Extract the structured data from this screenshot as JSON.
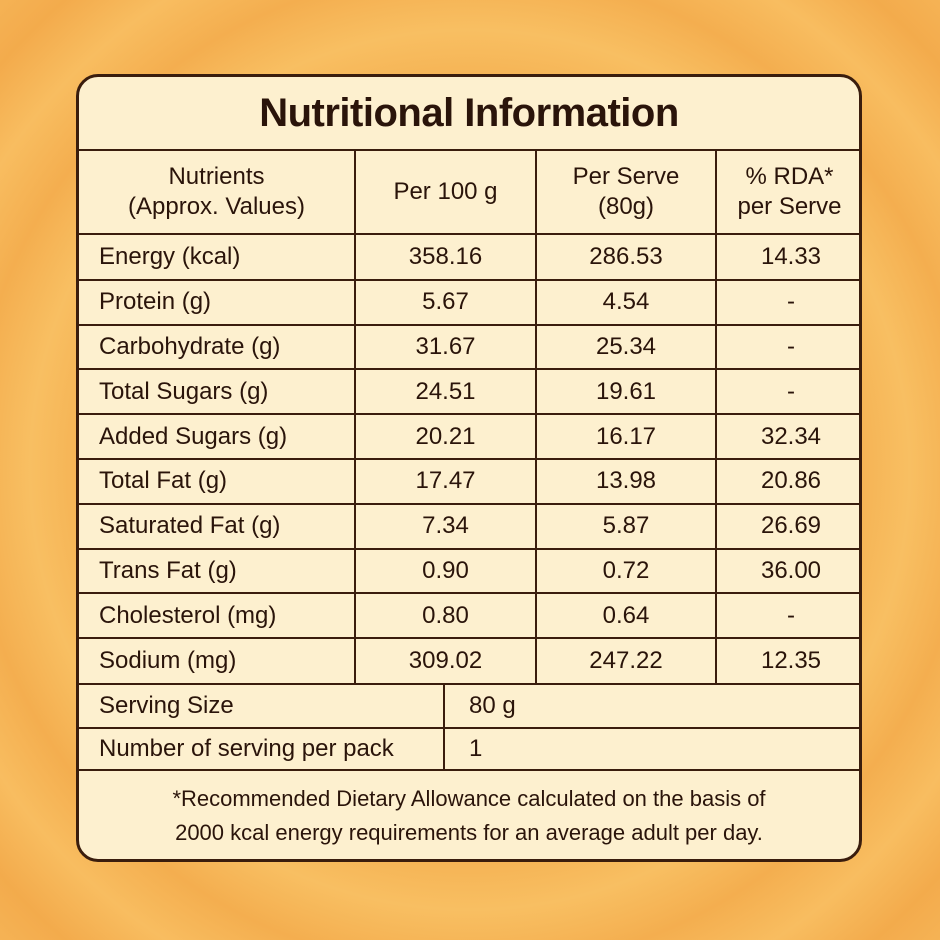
{
  "title": "Nutritional Information",
  "columns": {
    "nutrients": [
      "Nutrients",
      "(Approx. Values)"
    ],
    "per100": "Per 100 g",
    "perServe": [
      "Per Serve",
      "(80g)"
    ],
    "rda": [
      "% RDA*",
      "per Serve"
    ]
  },
  "rows": [
    {
      "name": "Energy (kcal)",
      "per100": "358.16",
      "perServe": "286.53",
      "rda": "14.33"
    },
    {
      "name": "Protein (g)",
      "per100": "5.67",
      "perServe": "4.54",
      "rda": "-"
    },
    {
      "name": "Carbohydrate (g)",
      "per100": "31.67",
      "perServe": "25.34",
      "rda": "-"
    },
    {
      "name": "Total Sugars (g)",
      "per100": "24.51",
      "perServe": "19.61",
      "rda": "-"
    },
    {
      "name": "Added Sugars (g)",
      "per100": "20.21",
      "perServe": "16.17",
      "rda": "32.34"
    },
    {
      "name": "Total Fat (g)",
      "per100": "17.47",
      "perServe": "13.98",
      "rda": "20.86"
    },
    {
      "name": "Saturated Fat (g)",
      "per100": "7.34",
      "perServe": "5.87",
      "rda": "26.69"
    },
    {
      "name": "Trans Fat (g)",
      "per100": "0.90",
      "perServe": "0.72",
      "rda": "36.00"
    },
    {
      "name": "Cholesterol (mg)",
      "per100": "0.80",
      "perServe": "0.64",
      "rda": "-"
    },
    {
      "name": "Sodium (mg)",
      "per100": "309.02",
      "perServe": "247.22",
      "rda": "12.35"
    }
  ],
  "serving": {
    "size_label": "Serving Size",
    "size_value": "80 g",
    "count_label": "Number of serving per pack",
    "count_value": "1"
  },
  "footnote": [
    "*Recommended Dietary Allowance  calculated on the basis of",
    "2000 kcal energy requirements for an average adult per day."
  ],
  "colors": {
    "background": "#f9c46a",
    "panel": "#fdf0cf",
    "ink": "#2a140a",
    "border": "#3a1d0d"
  }
}
